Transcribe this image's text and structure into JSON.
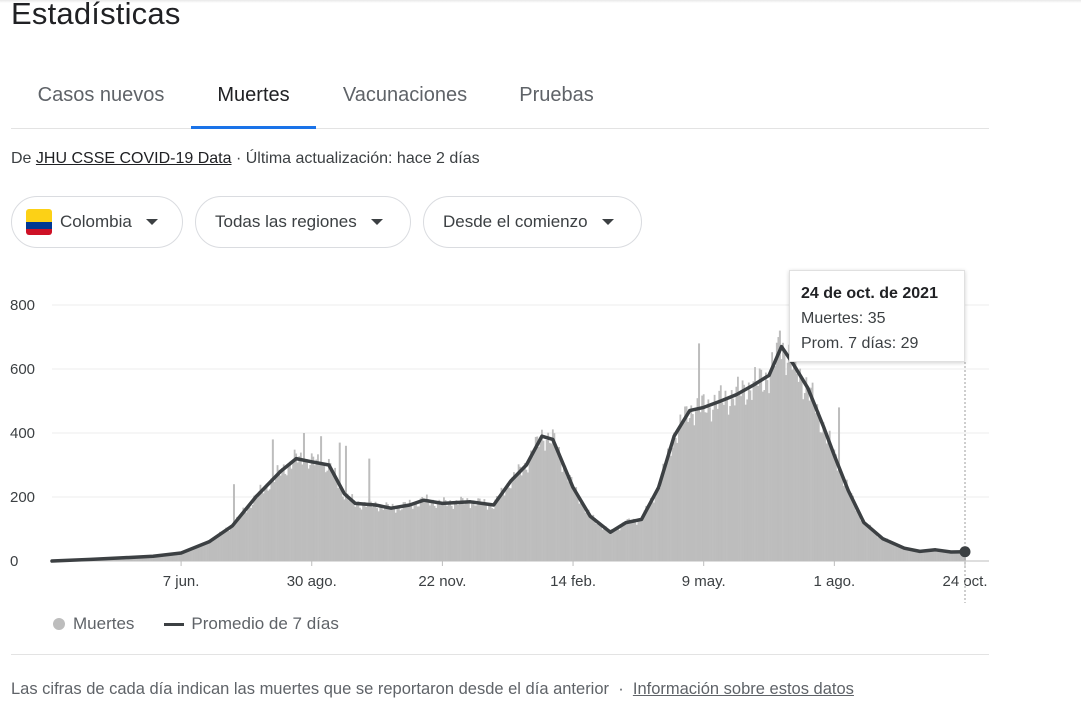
{
  "title": "Estadísticas",
  "tabs": [
    {
      "label": "Casos nuevos"
    },
    {
      "label": "Muertes",
      "active": true
    },
    {
      "label": "Vacunaciones"
    },
    {
      "label": "Pruebas"
    }
  ],
  "source": {
    "prefix": "De",
    "link": "JHU CSSE COVID-19 Data",
    "updated": "· Última actualización: hace 2 días"
  },
  "filters": {
    "country": "Colombia",
    "region": "Todas las regiones",
    "range": "Desde el comienzo"
  },
  "icons": {
    "flag": "colombia-flag-icon",
    "caret": "triangle-down-icon"
  },
  "colors": {
    "bars": "#bdbdbd",
    "line": "#3c4043",
    "accent": "#1a73e8"
  },
  "tooltip": {
    "date": "24 de oct. de 2021",
    "deaths": "Muertes: 35",
    "avg": "Prom. 7 días: 29"
  },
  "legend": {
    "bars": "Muertes",
    "line": "Promedio de 7 días"
  },
  "footnote": {
    "text": "Las cifras de cada día indican las muertes que se reportaron desde el día anterior",
    "separator": "·",
    "link": "Información sobre estos datos"
  },
  "chart_data": {
    "type": "bar",
    "x_start": "2020-03-16",
    "x_end": "2021-10-24",
    "y_ticks": [
      0,
      200,
      400,
      600,
      800
    ],
    "ylim": [
      0,
      800
    ],
    "grid": true,
    "x_ticks": [
      {
        "date": "2020-06-07",
        "label": "7 jun."
      },
      {
        "date": "2020-08-30",
        "label": "30 ago."
      },
      {
        "date": "2020-11-22",
        "label": "22 nov."
      },
      {
        "date": "2021-02-14",
        "label": "14 feb."
      },
      {
        "date": "2021-05-09",
        "label": "9 may."
      },
      {
        "date": "2021-08-01",
        "label": "1 ago."
      },
      {
        "date": "2021-10-24",
        "label": "24 oct."
      }
    ],
    "series": [
      {
        "name": "Promedio de 7 días",
        "type": "line",
        "points": [
          [
            "2020-03-16",
            0
          ],
          [
            "2020-04-10",
            5
          ],
          [
            "2020-05-01",
            10
          ],
          [
            "2020-05-20",
            15
          ],
          [
            "2020-06-07",
            25
          ],
          [
            "2020-06-25",
            60
          ],
          [
            "2020-07-10",
            110
          ],
          [
            "2020-07-25",
            200
          ],
          [
            "2020-08-10",
            280
          ],
          [
            "2020-08-20",
            320
          ],
          [
            "2020-08-30",
            310
          ],
          [
            "2020-09-10",
            300
          ],
          [
            "2020-09-20",
            210
          ],
          [
            "2020-09-27",
            180
          ],
          [
            "2020-10-10",
            175
          ],
          [
            "2020-10-20",
            165
          ],
          [
            "2020-11-01",
            175
          ],
          [
            "2020-11-10",
            190
          ],
          [
            "2020-11-22",
            180
          ],
          [
            "2020-12-10",
            185
          ],
          [
            "2020-12-25",
            175
          ],
          [
            "2021-01-05",
            250
          ],
          [
            "2021-01-15",
            300
          ],
          [
            "2021-01-25",
            390
          ],
          [
            "2021-02-01",
            380
          ],
          [
            "2021-02-14",
            230
          ],
          [
            "2021-02-25",
            140
          ],
          [
            "2021-03-10",
            90
          ],
          [
            "2021-03-20",
            120
          ],
          [
            "2021-03-30",
            130
          ],
          [
            "2021-04-10",
            230
          ],
          [
            "2021-04-20",
            390
          ],
          [
            "2021-04-30",
            470
          ],
          [
            "2021-05-09",
            480
          ],
          [
            "2021-05-20",
            500
          ],
          [
            "2021-05-30",
            520
          ],
          [
            "2021-06-10",
            550
          ],
          [
            "2021-06-20",
            580
          ],
          [
            "2021-06-28",
            670
          ],
          [
            "2021-07-05",
            620
          ],
          [
            "2021-07-15",
            540
          ],
          [
            "2021-07-25",
            420
          ],
          [
            "2021-08-01",
            330
          ],
          [
            "2021-08-10",
            220
          ],
          [
            "2021-08-20",
            120
          ],
          [
            "2021-09-01",
            70
          ],
          [
            "2021-09-15",
            40
          ],
          [
            "2021-09-25",
            30
          ],
          [
            "2021-10-05",
            35
          ],
          [
            "2021-10-15",
            28
          ],
          [
            "2021-10-24",
            29
          ]
        ]
      },
      {
        "name": "Muertes",
        "type": "bar",
        "spikes": [
          [
            "2020-07-11",
            240
          ],
          [
            "2020-08-05",
            380
          ],
          [
            "2020-08-25",
            400
          ],
          [
            "2020-09-05",
            390
          ],
          [
            "2020-09-17",
            370
          ],
          [
            "2020-09-21",
            360
          ],
          [
            "2020-10-06",
            320
          ],
          [
            "2021-05-06",
            680
          ],
          [
            "2021-06-27",
            720
          ],
          [
            "2021-08-04",
            480
          ]
        ]
      }
    ]
  }
}
